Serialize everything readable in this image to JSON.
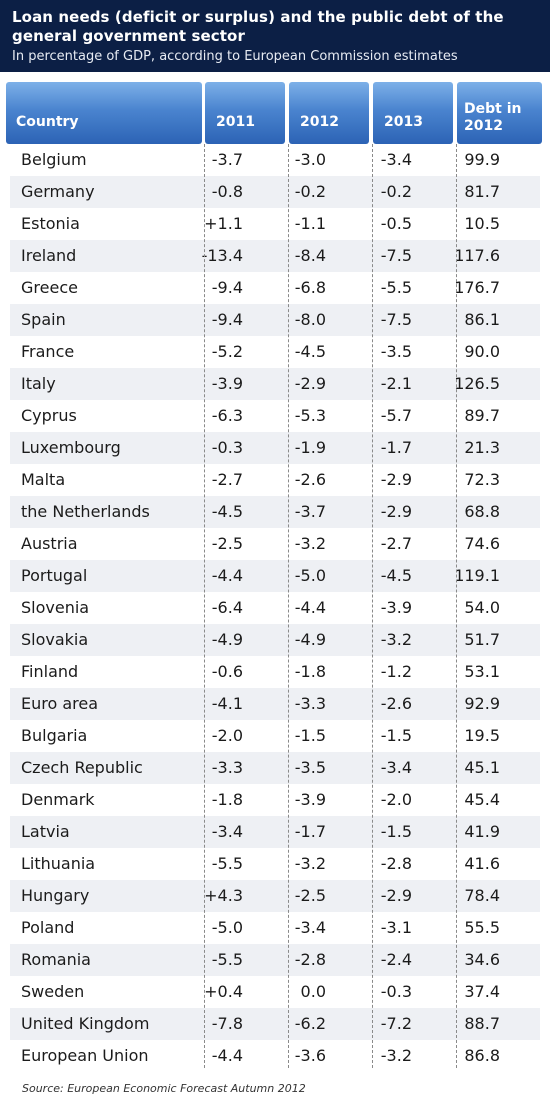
{
  "title": "Loan needs (deficit or surplus) and the public debt of the general government sector",
  "subtitle": "In percentage of GDP, according to European Commission estimates",
  "source": "Source: European Economic Forecast Autumn 2012",
  "colors": {
    "banner": "#0c1f45",
    "header": "#2c63b5",
    "stripe": "#eef0f4"
  },
  "chart_data": {
    "type": "table",
    "columns": [
      "Country",
      "2011",
      "2012",
      "2013",
      "Debt in 2012"
    ],
    "rows": [
      [
        "Belgium",
        "-3.7",
        "-3.0",
        "-3.4",
        "99.9"
      ],
      [
        "Germany",
        "-0.8",
        "-0.2",
        "-0.2",
        "81.7"
      ],
      [
        "Estonia",
        "+1.1",
        "-1.1",
        "-0.5",
        "10.5"
      ],
      [
        "Ireland",
        "-13.4",
        "-8.4",
        "-7.5",
        "117.6"
      ],
      [
        "Greece",
        "-9.4",
        "-6.8",
        "-5.5",
        "176.7"
      ],
      [
        "Spain",
        "-9.4",
        "-8.0",
        "-7.5",
        "86.1"
      ],
      [
        "France",
        "-5.2",
        "-4.5",
        "-3.5",
        "90.0"
      ],
      [
        "Italy",
        "-3.9",
        "-2.9",
        "-2.1",
        "126.5"
      ],
      [
        "Cyprus",
        "-6.3",
        "-5.3",
        "-5.7",
        "89.7"
      ],
      [
        "Luxembourg",
        "-0.3",
        "-1.9",
        "-1.7",
        "21.3"
      ],
      [
        "Malta",
        "-2.7",
        "-2.6",
        "-2.9",
        "72.3"
      ],
      [
        "the Netherlands",
        "-4.5",
        "-3.7",
        "-2.9",
        "68.8"
      ],
      [
        "Austria",
        "-2.5",
        "-3.2",
        "-2.7",
        "74.6"
      ],
      [
        "Portugal",
        "-4.4",
        "-5.0",
        "-4.5",
        "119.1"
      ],
      [
        "Slovenia",
        "-6.4",
        "-4.4",
        "-3.9",
        "54.0"
      ],
      [
        "Slovakia",
        "-4.9",
        "-4.9",
        "-3.2",
        "51.7"
      ],
      [
        "Finland",
        "-0.6",
        "-1.8",
        "-1.2",
        "53.1"
      ],
      [
        "Euro area",
        "-4.1",
        "-3.3",
        "-2.6",
        "92.9"
      ],
      [
        "Bulgaria",
        "-2.0",
        "-1.5",
        "-1.5",
        "19.5"
      ],
      [
        "Czech Republic",
        "-3.3",
        "-3.5",
        "-3.4",
        "45.1"
      ],
      [
        "Denmark",
        "-1.8",
        "-3.9",
        "-2.0",
        "45.4"
      ],
      [
        "Latvia",
        "-3.4",
        "-1.7",
        "-1.5",
        "41.9"
      ],
      [
        "Lithuania",
        "-5.5",
        "-3.2",
        "-2.8",
        "41.6"
      ],
      [
        "Hungary",
        "+4.3",
        "-2.5",
        "-2.9",
        "78.4"
      ],
      [
        "Poland",
        "-5.0",
        "-3.4",
        "-3.1",
        "55.5"
      ],
      [
        "Romania",
        "-5.5",
        "-2.8",
        "-2.4",
        "34.6"
      ],
      [
        "Sweden",
        "+0.4",
        "0.0",
        "-0.3",
        "37.4"
      ],
      [
        "United Kingdom",
        "-7.8",
        "-6.2",
        "-7.2",
        "88.7"
      ],
      [
        "European Union",
        "-4.4",
        "-3.6",
        "-3.2",
        "86.8"
      ]
    ]
  }
}
